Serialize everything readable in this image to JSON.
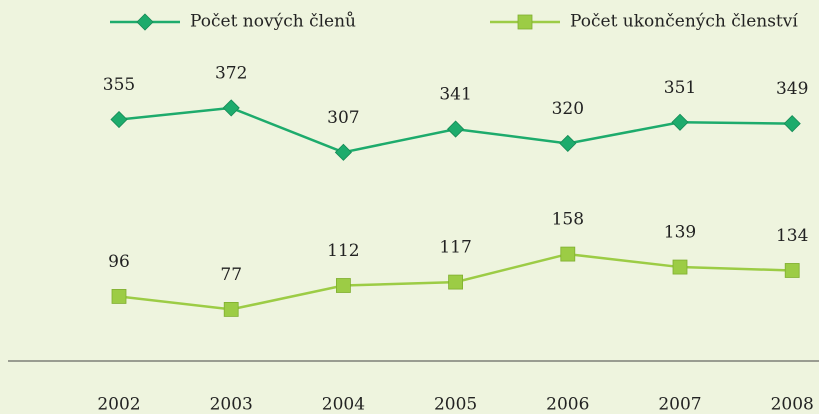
{
  "chart_data": {
    "type": "line",
    "categories": [
      "2002",
      "2003",
      "2004",
      "2005",
      "2006",
      "2007",
      "2008"
    ],
    "series": [
      {
        "name": "Počet nových členů",
        "color": "#1dab6c",
        "values": [
          355,
          372,
          307,
          341,
          320,
          351,
          349
        ]
      },
      {
        "name": "Počet ukončených členství",
        "color": "#9ccc45",
        "values": [
          96,
          77,
          112,
          117,
          158,
          139,
          134
        ]
      }
    ],
    "ylim": [
      0,
      530
    ]
  }
}
